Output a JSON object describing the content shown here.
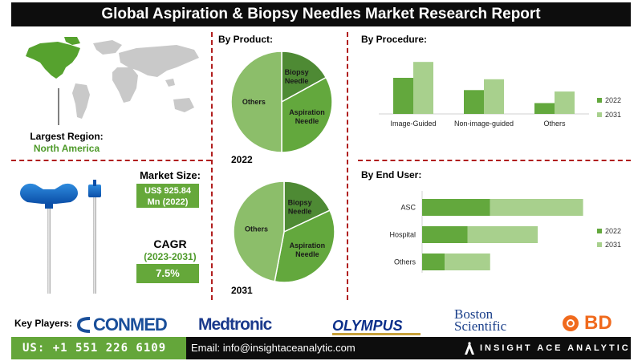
{
  "title": "Global Aspiration & Biopsy Needles Market Research Report",
  "region": {
    "label": "Largest Region:",
    "value": "North America"
  },
  "market_size": {
    "label": "Market Size:",
    "value_line1": "US$ 925.84",
    "value_line2": "Mn (2022)"
  },
  "cagr": {
    "label": "CAGR",
    "period": "(2023-2031)",
    "value": "7.5%"
  },
  "by_product": {
    "label": "By Product:"
  },
  "by_procedure": {
    "label": "By  Procedure:"
  },
  "by_end_user": {
    "label": "By End User:"
  },
  "colors": {
    "dark_green": "#4e8a34",
    "mid_green": "#63a83d",
    "light_green": "#a8d08d",
    "pie_others": "#8cbe6a",
    "accent_red": "#b11e1e"
  },
  "chart_data": [
    {
      "type": "pie",
      "title": "2022",
      "slices": [
        {
          "label": "Biopsy Needle",
          "value": 17
        },
        {
          "label": "Aspiration Needle",
          "value": 33
        },
        {
          "label": "Others",
          "value": 50
        }
      ]
    },
    {
      "type": "pie",
      "title": "2031",
      "slices": [
        {
          "label": "Biopsy Needle",
          "value": 18
        },
        {
          "label": "Aspiration Needle",
          "value": 35
        },
        {
          "label": "Others",
          "value": 47
        }
      ]
    },
    {
      "type": "bar",
      "categories": [
        "Image-Guided",
        "Non-image-guided",
        "Others"
      ],
      "series": [
        {
          "name": "2022",
          "values": [
            50,
            33,
            15
          ]
        },
        {
          "name": "2031",
          "values": [
            72,
            48,
            31
          ]
        }
      ],
      "ylim": [
        0,
        80
      ],
      "legend": "right"
    },
    {
      "type": "bar",
      "orientation": "horizontal",
      "categories": [
        "ASC",
        "Hospital",
        "Others"
      ],
      "series": [
        {
          "name": "2022",
          "values": [
            30,
            20,
            10
          ]
        },
        {
          "name": "2031",
          "values": [
            41,
            31,
            20
          ]
        }
      ],
      "xlim": [
        0,
        80
      ],
      "legend": "right"
    }
  ],
  "footer": {
    "key_players_label": "Key Players:",
    "players": [
      "CONMED",
      "Medtronic",
      "OLYMPUS",
      "Boston",
      "Scientific",
      "BD"
    ],
    "phone": "US: +1 551 226 6109",
    "email": "Email: info@insightaceanalytic.com",
    "brand": "INSIGHT ACE ANALYTIC"
  }
}
